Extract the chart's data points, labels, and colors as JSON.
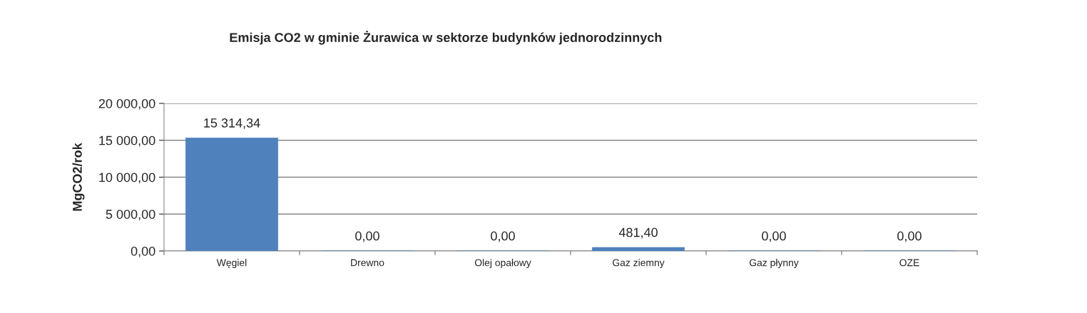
{
  "chart_data": {
    "type": "bar",
    "title": "Emisja CO2 w gminie Żurawica w sektorze budynków jednorodzinnych",
    "ylabel": "MgCO2/rok",
    "categories": [
      "Węgiel",
      "Drewno",
      "Olej opałowy",
      "Gaz ziemny",
      "Gaz płynny",
      "OZE"
    ],
    "values": [
      15314.34,
      0,
      0,
      481.4,
      0,
      0
    ],
    "value_labels": [
      "15 314,34",
      "0,00",
      "0,00",
      "481,40",
      "0,00",
      "0,00"
    ],
    "color": "#4f81bd",
    "ylim": [
      0,
      20000
    ],
    "yticks": [
      {
        "value": 0,
        "label": "0,00"
      },
      {
        "value": 5000,
        "label": "5 000,00"
      },
      {
        "value": 10000,
        "label": "10 000,00"
      },
      {
        "value": 15000,
        "label": "15 000,00"
      },
      {
        "value": 20000,
        "label": "20 000,00"
      }
    ],
    "grid": "y",
    "legend": false
  }
}
